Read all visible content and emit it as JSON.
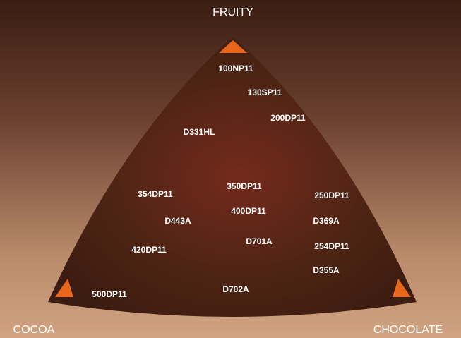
{
  "corners": {
    "top": "FRUITY",
    "bottom_left": "COCOA",
    "bottom_right": "CHOCOLATE"
  },
  "products": [
    "100NP11",
    "130SP11",
    "200DP11",
    "D331HL",
    "350DP11",
    "354DP11",
    "250DP11",
    "400DP11",
    "D443A",
    "D369A",
    "D701A",
    "420DP11",
    "254DP11",
    "D355A",
    "D702A",
    "500DP11"
  ]
}
